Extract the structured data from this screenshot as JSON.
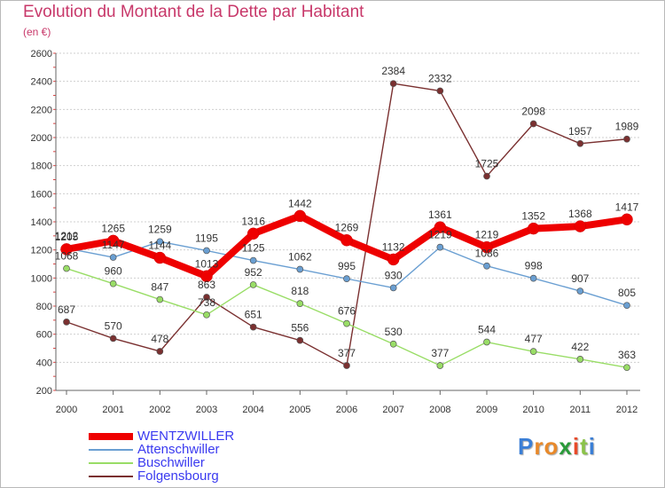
{
  "header": {
    "title": "Evolution du Montant de la Dette par Habitant",
    "subtitle": "(en €)"
  },
  "brand": {
    "text": "Proxiti"
  },
  "chart_data": {
    "type": "line",
    "title": "Evolution du Montant de la Dette par Habitant",
    "subtitle": "(en €)",
    "xlabel": "",
    "ylabel": "",
    "x": [
      "2000",
      "2001",
      "2002",
      "2003",
      "2004",
      "2005",
      "2006",
      "2007",
      "2008",
      "2009",
      "2010",
      "2011",
      "2012"
    ],
    "ylim": [
      200,
      2600
    ],
    "yticks": [
      "200",
      "400",
      "600",
      "800",
      "1000",
      "1200",
      "1400",
      "1600",
      "1800",
      "2000",
      "2200",
      "2400",
      "2600"
    ],
    "grid": "horizontal",
    "legend_position": "bottom-left",
    "series": [
      {
        "name": "WENTZWILLER",
        "color": "#ee0000",
        "values": [
          1205,
          1265,
          1144,
          1013,
          1316,
          1442,
          1269,
          1132,
          1361,
          1219,
          1352,
          1368,
          1417
        ],
        "labels": [
          "1205",
          "1265",
          "1144",
          "1013",
          "1316",
          "1442",
          "1269",
          "1132",
          "1361",
          "1219",
          "1352",
          "1368",
          "1417"
        ]
      },
      {
        "name": "Attenschwiller",
        "color": "#6a9fd2",
        "values": [
          1212,
          1147,
          1259,
          1195,
          1125,
          1062,
          995,
          930,
          1219,
          1086,
          998,
          907,
          805
        ],
        "labels": [
          "1212",
          "1147",
          "1259",
          "1195",
          "1125",
          "1062",
          "995",
          "930",
          "1219",
          "1086",
          "998",
          "907",
          "805"
        ]
      },
      {
        "name": "Buschwiller",
        "color": "#99dd66",
        "values": [
          1068,
          960,
          847,
          738,
          952,
          818,
          676,
          530,
          377,
          544,
          477,
          422,
          363
        ],
        "labels": [
          "1068",
          "960",
          "847",
          "738",
          "952",
          "818",
          "676",
          "530",
          "377",
          "544",
          "477",
          "422",
          "363"
        ]
      },
      {
        "name": "Folgensbourg",
        "color": "#7a3030",
        "values": [
          687,
          570,
          478,
          863,
          651,
          556,
          377,
          2384,
          2332,
          1725,
          2098,
          1957,
          1989
        ],
        "labels": [
          "687",
          "570",
          "478",
          "863",
          "651",
          "556",
          "377",
          "2384",
          "2332",
          "1725",
          "2098",
          "1957",
          "1989"
        ]
      }
    ]
  }
}
